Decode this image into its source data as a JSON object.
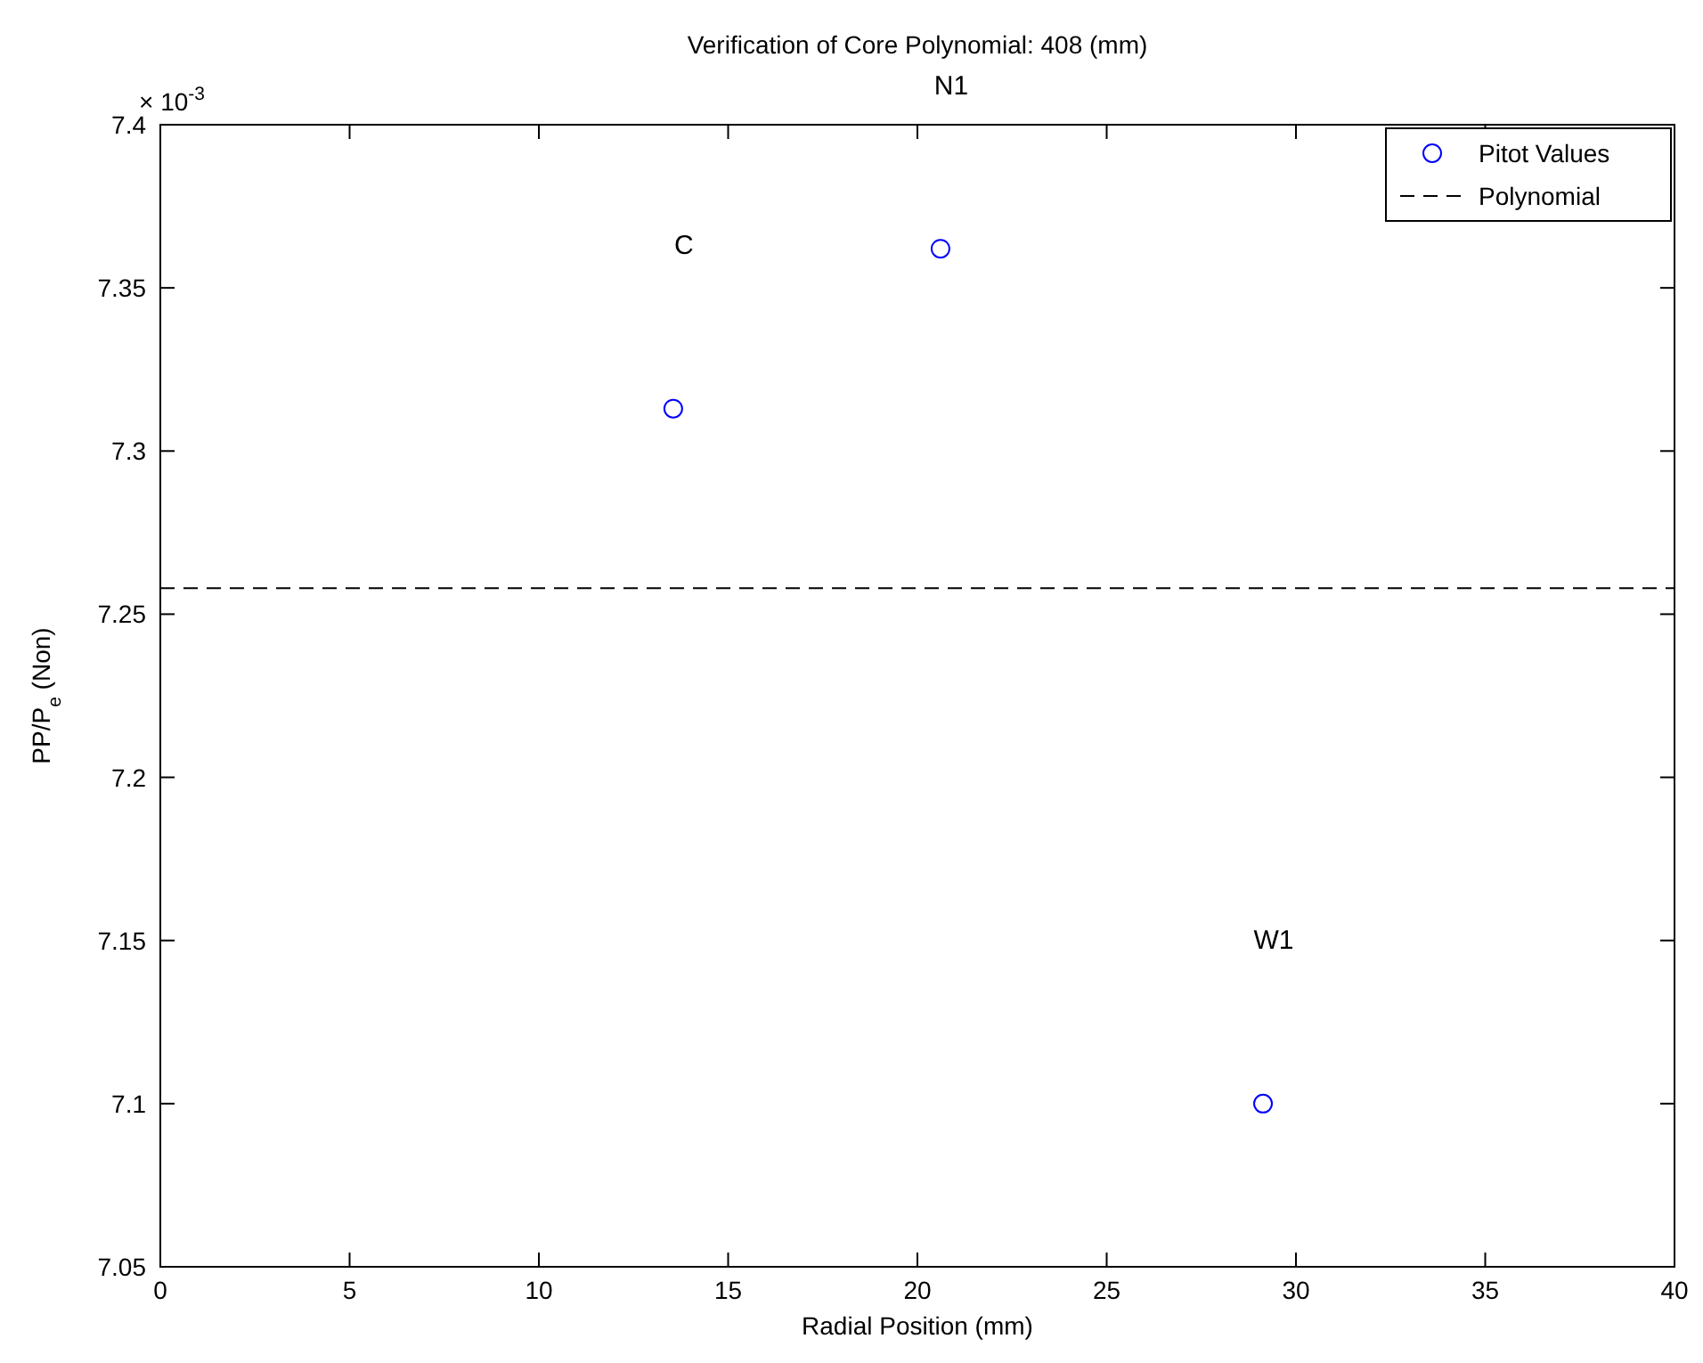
{
  "chart_data": {
    "type": "scatter",
    "title": "Verification of Core Polynomial: 408 (mm)",
    "xlabel": "Radial Position (mm)",
    "ylabel": "PP/P$_{e}$ (Non)",
    "xlim": [
      0,
      40
    ],
    "xticks": [
      0,
      5,
      10,
      15,
      20,
      25,
      30,
      35,
      40
    ],
    "ylim": [
      7.05,
      7.4
    ],
    "yticks": [
      7.05,
      7.1,
      7.15,
      7.2,
      7.25,
      7.3,
      7.35,
      7.4
    ],
    "x": [
      13.55,
      20.61,
      29.13
    ],
    "series": [
      {
        "name": "Pitot Values",
        "color": "#0000ff",
        "marker": "circle",
        "values": [
          7.313,
          7.362,
          7.1
        ]
      },
      {
        "name": "Polynomial",
        "type": "line",
        "color": "#000000",
        "line_style": "dashed",
        "marker": "none",
        "x": [
          0,
          40
        ],
        "values": [
          7.258,
          7.258
        ]
      }
    ],
    "annotations": [
      "× 10$^{-3}$",
      "C",
      "N1",
      "W1"
    ],
    "legend": "top right",
    "grid": false
  }
}
